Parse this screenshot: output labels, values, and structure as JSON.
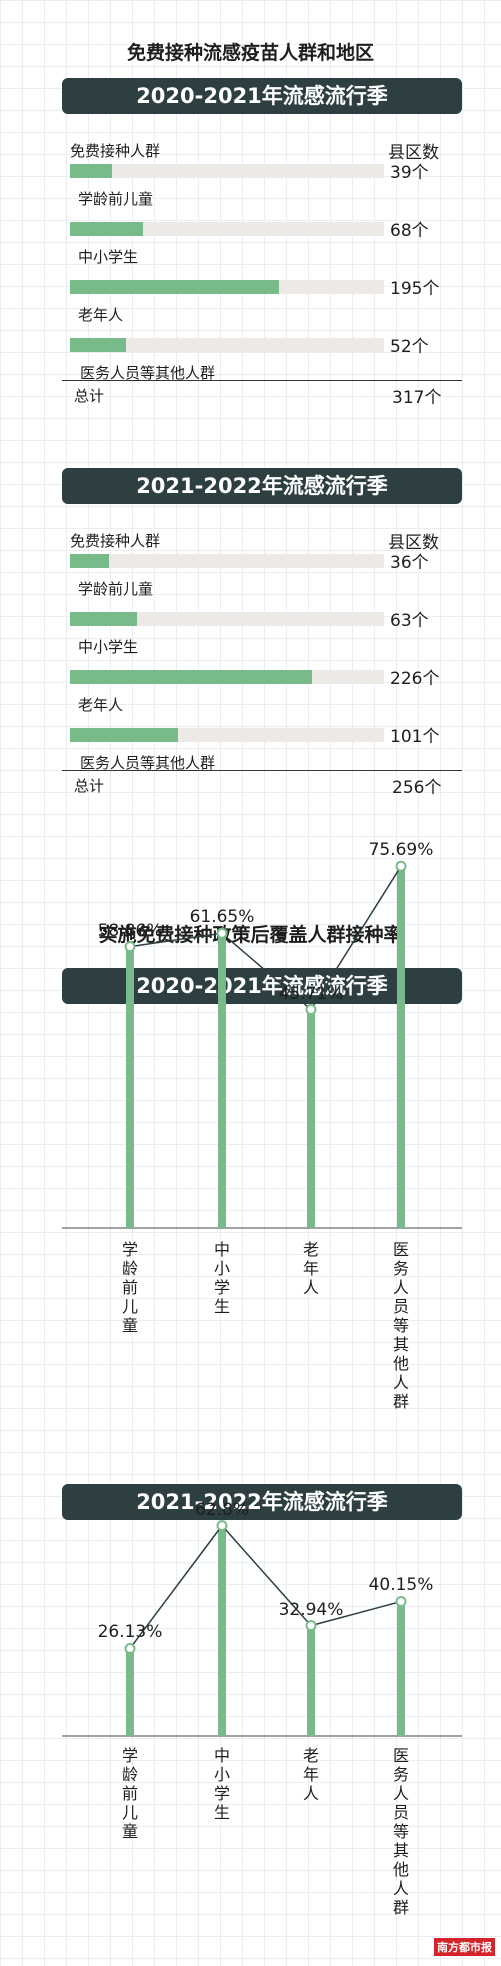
{
  "section1": {
    "title": "免费接种流感疫苗人群和地区",
    "tables": [
      {
        "season": "2020-2021年流感流行季",
        "header_left": "免费接种人群",
        "header_right": "县区数",
        "rows": [
          {
            "label": "学龄前儿童",
            "count": 39,
            "count_text": "39个"
          },
          {
            "label": "中小学生",
            "count": 68,
            "count_text": "68个"
          },
          {
            "label": "老年人",
            "count": 195,
            "count_text": "195个"
          },
          {
            "label": "医务人员等其他人群",
            "count": 52,
            "count_text": "52个"
          }
        ],
        "total_label": "总计",
        "total_text": "317个"
      },
      {
        "season": "2021-2022年流感流行季",
        "header_left": "免费接种人群",
        "header_right": "县区数",
        "rows": [
          {
            "label": "学龄前儿童",
            "count": 36,
            "count_text": "36个"
          },
          {
            "label": "中小学生",
            "count": 63,
            "count_text": "63个"
          },
          {
            "label": "老年人",
            "count": 226,
            "count_text": "226个"
          },
          {
            "label": "医务人员等其他人群",
            "count": 101,
            "count_text": "101个"
          }
        ],
        "total_label": "总计",
        "total_text": "256个"
      }
    ]
  },
  "section2": {
    "title": "实施免费接种政策后覆盖人群接种率"
  },
  "chart_data": [
    {
      "type": "bar",
      "title": "2020-2021年流感流行季",
      "categories": [
        "学龄前儿童",
        "中小学生",
        "老年人",
        "医务人员等其他人群"
      ],
      "values": [
        39,
        68,
        195,
        52
      ],
      "unit": "个",
      "total": 317
    },
    {
      "type": "bar",
      "title": "2021-2022年流感流行季",
      "categories": [
        "学龄前儿童",
        "中小学生",
        "老年人",
        "医务人员等其他人群"
      ],
      "values": [
        36,
        63,
        226,
        101
      ],
      "unit": "个",
      "total": 256
    },
    {
      "type": "line",
      "title": "2020-2021年流感流行季",
      "categories": [
        "学龄前儿童",
        "中小学生",
        "老年人",
        "医务人员等其他人群"
      ],
      "values": [
        58.86,
        61.65,
        45.71,
        75.69
      ],
      "labels": [
        "58.86%",
        "61.65%",
        "45.71%",
        "75.69%"
      ]
    },
    {
      "type": "line",
      "title": "2021-2022年流感流行季",
      "categories": [
        "学龄前儿童",
        "中小学生",
        "老年人",
        "医务人员等其他人群"
      ],
      "values": [
        26.13,
        62.8,
        32.94,
        40.15
      ],
      "labels": [
        "26.13%",
        "62.8%",
        "32.94%",
        "40.15%"
      ]
    }
  ],
  "colors": {
    "banner": "#2e3f42",
    "bar": "#79ba8b",
    "track": "#ece9e6",
    "line": "#2e3f42"
  },
  "logo": "南方都市报"
}
